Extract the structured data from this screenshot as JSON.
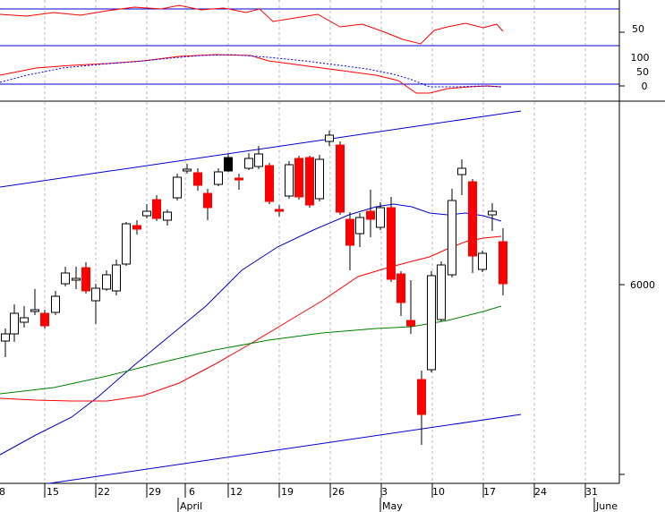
{
  "chart_data": {
    "type": "candlestick",
    "title": "",
    "x_labels": {
      "days": [
        "8",
        "15",
        "22",
        "29",
        "6",
        "12",
        "19",
        "26",
        "3",
        "10",
        "17",
        "24",
        "31"
      ],
      "months": [
        "April",
        "May",
        "June"
      ]
    },
    "oscillator_top": {
      "ticks": [
        "50"
      ],
      "series_color": "#ff0000"
    },
    "oscillator_mid": {
      "ticks": [
        "100",
        "50",
        "0"
      ],
      "colors": {
        "fast": "#ff0000",
        "signal": "#0000ff"
      }
    },
    "price_panel": {
      "ticks": [
        "6000"
      ],
      "moving_averages": [
        {
          "color": "#0000cc"
        },
        {
          "color": "#ff0000"
        },
        {
          "color": "#008000"
        }
      ],
      "channel_color": "#0000cc",
      "up_color": "#ffffff",
      "down_color": "#ff0000"
    }
  }
}
